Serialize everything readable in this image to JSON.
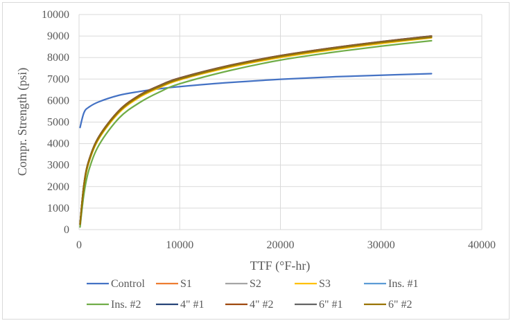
{
  "chart_data": {
    "type": "line",
    "xlabel": "TTF  (°F-hr)",
    "ylabel": "Compr. Strength (psi)",
    "xlim": [
      0,
      40000
    ],
    "ylim": [
      0,
      10000
    ],
    "x_ticks": [
      "0",
      "10000",
      "20000",
      "30000",
      "40000"
    ],
    "y_ticks": [
      "0",
      "1000",
      "2000",
      "3000",
      "4000",
      "5000",
      "6000",
      "7000",
      "8000",
      "9000",
      "10000"
    ],
    "grid": "major gridlines on both axes",
    "legend_position": "bottom",
    "x": [
      100,
      500,
      1000,
      2000,
      4000,
      6000,
      8000,
      10000,
      15000,
      20000,
      25000,
      30000,
      35000
    ],
    "series": [
      {
        "name": "Control",
        "color": "#4472c4",
        "values": [
          4750,
          5450,
          5700,
          5950,
          6250,
          6420,
          6550,
          6650,
          6840,
          6990,
          7100,
          7180,
          7250
        ]
      },
      {
        "name": "S1",
        "color": "#ed7d31",
        "values": [
          250,
          2100,
          3200,
          4300,
          5500,
          6200,
          6650,
          7000,
          7600,
          8050,
          8400,
          8700,
          8950
        ]
      },
      {
        "name": "S2",
        "color": "#a5a5a5",
        "values": [
          250,
          2100,
          3200,
          4300,
          5500,
          6200,
          6650,
          7000,
          7600,
          8050,
          8400,
          8700,
          8950
        ]
      },
      {
        "name": "S3",
        "color": "#ffc000",
        "values": [
          230,
          2050,
          3150,
          4250,
          5450,
          6150,
          6600,
          6960,
          7550,
          8000,
          8350,
          8650,
          8920
        ]
      },
      {
        "name": "Ins. #1",
        "color": "#5b9bd5",
        "values": [
          250,
          2100,
          3200,
          4300,
          5500,
          6200,
          6650,
          7000,
          7600,
          8050,
          8400,
          8700,
          8950
        ]
      },
      {
        "name": "Ins. #2",
        "color": "#70ad47",
        "values": [
          120,
          1700,
          2800,
          3950,
          5200,
          5900,
          6400,
          6780,
          7400,
          7880,
          8230,
          8530,
          8780
        ]
      },
      {
        "name": "4\" #1",
        "color": "#264478",
        "values": [
          260,
          2150,
          3250,
          4350,
          5550,
          6250,
          6700,
          7050,
          7640,
          8090,
          8440,
          8740,
          9000
        ]
      },
      {
        "name": "4\" #2",
        "color": "#9e480e",
        "values": [
          260,
          2150,
          3250,
          4350,
          5550,
          6250,
          6700,
          7050,
          7640,
          8090,
          8440,
          8740,
          9000
        ]
      },
      {
        "name": "6\" #1",
        "color": "#636363",
        "values": [
          255,
          2120,
          3220,
          4320,
          5520,
          6220,
          6680,
          7030,
          7620,
          8070,
          8420,
          8720,
          8980
        ]
      },
      {
        "name": "6\" #2",
        "color": "#997300",
        "values": [
          250,
          2100,
          3200,
          4300,
          5500,
          6200,
          6650,
          7000,
          7600,
          8050,
          8400,
          8700,
          8950
        ]
      }
    ]
  }
}
